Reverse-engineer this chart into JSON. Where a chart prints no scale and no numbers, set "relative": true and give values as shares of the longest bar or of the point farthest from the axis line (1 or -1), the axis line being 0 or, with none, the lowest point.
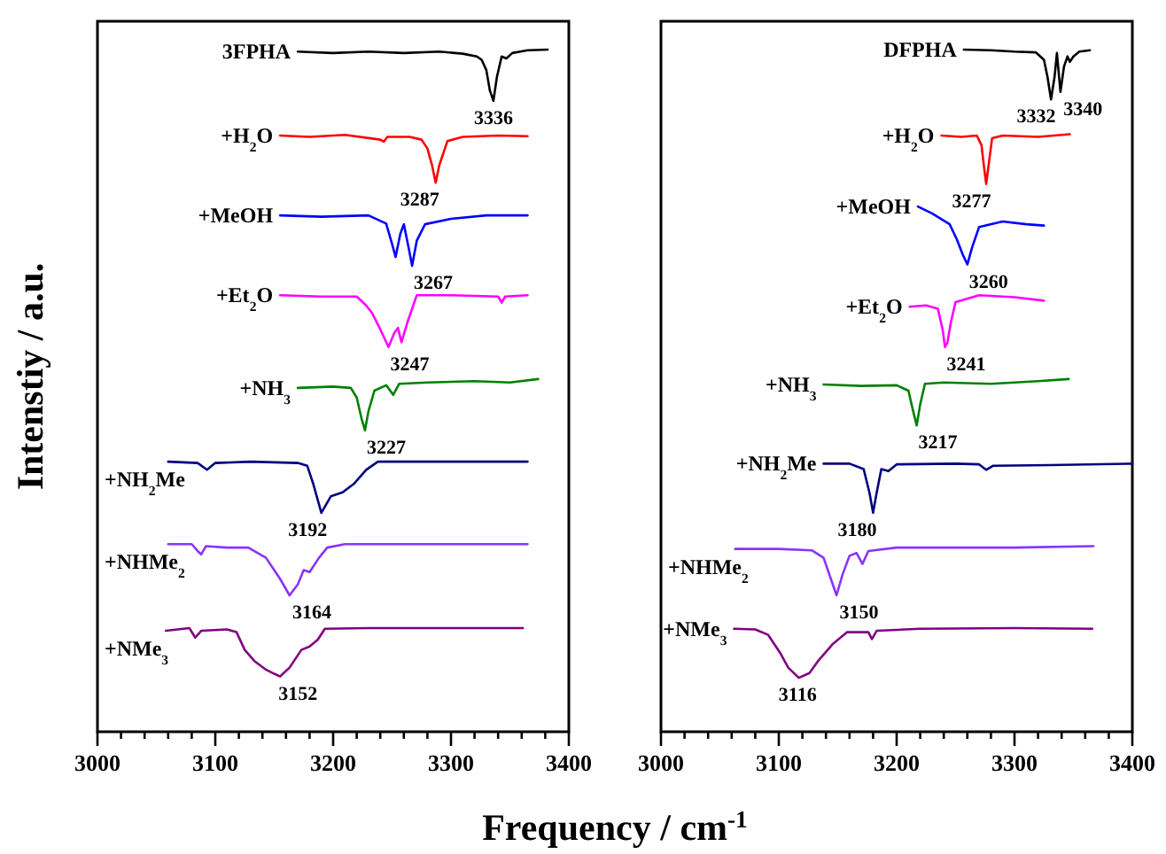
{
  "chart_data": [
    {
      "type": "line",
      "relative": true,
      "ylabel": "Intenstiy / a.u.",
      "xlabel": "Frequency / cm$^{-1}$",
      "xlim": [
        3000,
        3400
      ],
      "xticks": [
        3000,
        {
          "value": 3020,
          "label": null
        },
        {
          "value": 3040,
          "label": null
        },
        {
          "value": 3060,
          "label": null
        },
        {
          "value": 3080,
          "label": null
        },
        3100,
        {
          "value": 3120,
          "label": null
        },
        {
          "value": 3140,
          "label": null
        },
        {
          "value": 3160,
          "label": null
        },
        {
          "value": 3180,
          "label": null
        },
        3200,
        {
          "value": 3220,
          "label": null
        },
        {
          "value": 3240,
          "label": null
        },
        {
          "value": 3260,
          "label": null
        },
        {
          "value": 3280,
          "label": null
        },
        3300,
        {
          "value": 3320,
          "label": null
        },
        {
          "value": 3340,
          "label": null
        },
        {
          "value": 3360,
          "label": null
        },
        {
          "value": 3380,
          "label": null
        },
        3400
      ],
      "series": [
        {
          "name": "3FPHA",
          "color": "#000000",
          "x": [
            3170,
            3200,
            3230,
            3260,
            3290,
            3310,
            3322,
            3326,
            3330,
            3333,
            3336,
            3339,
            3343,
            3347,
            3352,
            3365,
            3382
          ],
          "values": [
            0.997,
            0.995,
            0.997,
            0.995,
            0.997,
            0.994,
            0.99,
            0.985,
            0.97,
            0.94,
            0.925,
            0.96,
            0.99,
            0.987,
            0.995,
            0.999,
            1.0
          ]
        },
        {
          "name": "+H$_{2}$O",
          "color": "#ff0000",
          "x": [
            3155,
            3180,
            3210,
            3240,
            3243,
            3246,
            3265,
            3275,
            3280,
            3284,
            3287,
            3290,
            3297,
            3310,
            3340,
            3365
          ],
          "values": [
            0.874,
            0.872,
            0.875,
            0.868,
            0.865,
            0.872,
            0.872,
            0.868,
            0.855,
            0.83,
            0.805,
            0.83,
            0.866,
            0.872,
            0.874,
            0.873
          ]
        },
        {
          "name": "+MeOH",
          "color": "#0000ff",
          "x": [
            3155,
            3190,
            3230,
            3245,
            3250,
            3253,
            3257,
            3260,
            3264,
            3267,
            3271,
            3278,
            3300,
            3330,
            3365
          ],
          "values": [
            0.757,
            0.755,
            0.757,
            0.745,
            0.715,
            0.696,
            0.73,
            0.744,
            0.71,
            0.683,
            0.72,
            0.744,
            0.752,
            0.757,
            0.757
          ]
        },
        {
          "name": "+Et$_{2}$O",
          "color": "#ff00ff",
          "x": [
            3155,
            3190,
            3220,
            3228,
            3233,
            3240,
            3247,
            3252,
            3255,
            3258,
            3263,
            3271,
            3300,
            3340,
            3343,
            3346,
            3365
          ],
          "values": [
            0.64,
            0.638,
            0.638,
            0.625,
            0.614,
            0.59,
            0.564,
            0.585,
            0.592,
            0.571,
            0.6,
            0.64,
            0.64,
            0.638,
            0.629,
            0.638,
            0.64
          ]
        },
        {
          "name": "+NH$_{3}$",
          "color": "#008000",
          "x": [
            3170,
            3200,
            3215,
            3220,
            3224,
            3227,
            3230,
            3235,
            3245,
            3251,
            3256,
            3280,
            3320,
            3350,
            3374
          ],
          "values": [
            0.504,
            0.506,
            0.504,
            0.49,
            0.46,
            0.442,
            0.47,
            0.5,
            0.508,
            0.494,
            0.51,
            0.512,
            0.514,
            0.512,
            0.517
          ]
        },
        {
          "name": "+NH$_{2}$Me",
          "color": "#000080",
          "x": [
            3060,
            3085,
            3093,
            3100,
            3130,
            3170,
            3178,
            3183,
            3190,
            3198,
            3208,
            3218,
            3228,
            3238,
            3280,
            3330,
            3365
          ],
          "values": [
            0.396,
            0.394,
            0.384,
            0.394,
            0.396,
            0.394,
            0.39,
            0.364,
            0.321,
            0.345,
            0.351,
            0.364,
            0.384,
            0.396,
            0.396,
            0.396,
            0.396
          ]
        },
        {
          "name": "+NHMe$_{2}$",
          "color": "#8833ff",
          "x": [
            3060,
            3080,
            3085,
            3088,
            3092,
            3110,
            3128,
            3143,
            3155,
            3163,
            3170,
            3175,
            3180,
            3188,
            3195,
            3210,
            3260,
            3365
          ],
          "values": [
            0.275,
            0.275,
            0.265,
            0.26,
            0.272,
            0.27,
            0.27,
            0.255,
            0.224,
            0.2,
            0.216,
            0.237,
            0.234,
            0.255,
            0.27,
            0.275,
            0.275,
            0.275
          ]
        },
        {
          "name": "+NMe$_{3}$",
          "color": "#800080",
          "x": [
            3058,
            3078,
            3083,
            3088,
            3110,
            3118,
            3125,
            3133,
            3143,
            3150,
            3155,
            3158,
            3163,
            3173,
            3180,
            3187,
            3193,
            3230,
            3300,
            3361
          ],
          "values": [
            0.148,
            0.152,
            0.138,
            0.148,
            0.15,
            0.146,
            0.12,
            0.104,
            0.091,
            0.085,
            0.081,
            0.086,
            0.094,
            0.12,
            0.125,
            0.135,
            0.151,
            0.152,
            0.152,
            0.152
          ]
        }
      ],
      "annotations": [
        {
          "text": "3336",
          "x": 3336,
          "y": 0.925
        },
        {
          "text": "3287",
          "x": 3287,
          "y": 0.805
        },
        {
          "text": "3267",
          "x": 3267,
          "y": 0.683
        },
        {
          "text": "3247",
          "x": 3247,
          "y": 0.564
        },
        {
          "text": "3227",
          "x": 3227,
          "y": 0.442
        },
        {
          "text": "3192",
          "x": 3192,
          "y": 0.321
        },
        {
          "text": "3164",
          "x": 3164,
          "y": 0.2
        },
        {
          "text": "3152",
          "x": 3152,
          "y": 0.081
        }
      ]
    },
    {
      "type": "line",
      "relative": true,
      "xlim": [
        3000,
        3400
      ],
      "xticks": [
        3000,
        {
          "value": 3020,
          "label": null
        },
        {
          "value": 3040,
          "label": null
        },
        {
          "value": 3060,
          "label": null
        },
        {
          "value": 3080,
          "label": null
        },
        3100,
        {
          "value": 3120,
          "label": null
        },
        {
          "value": 3140,
          "label": null
        },
        {
          "value": 3160,
          "label": null
        },
        {
          "value": 3180,
          "label": null
        },
        3200,
        {
          "value": 3220,
          "label": null
        },
        {
          "value": 3240,
          "label": null
        },
        {
          "value": 3260,
          "label": null
        },
        {
          "value": 3280,
          "label": null
        },
        3300,
        {
          "value": 3320,
          "label": null
        },
        {
          "value": 3340,
          "label": null
        },
        {
          "value": 3360,
          "label": null
        },
        {
          "value": 3380,
          "label": null
        },
        3400
      ],
      "series": [
        {
          "name": "DFPHA",
          "color": "#000000",
          "x": [
            3257,
            3280,
            3300,
            3318,
            3325,
            3328,
            3331,
            3334,
            3336,
            3339,
            3342,
            3345,
            3347,
            3350,
            3355,
            3364
          ],
          "values": [
            1.0,
            0.999,
            0.997,
            0.996,
            0.985,
            0.96,
            0.927,
            0.96,
            0.995,
            0.938,
            0.975,
            0.99,
            0.982,
            0.99,
            0.997,
            0.999
          ]
        },
        {
          "name": "+H$_{2}$O",
          "color": "#ff0000",
          "x": [
            3238,
            3255,
            3268,
            3272,
            3274,
            3276,
            3278,
            3281,
            3290,
            3320,
            3347
          ],
          "values": [
            0.874,
            0.872,
            0.874,
            0.86,
            0.83,
            0.803,
            0.83,
            0.87,
            0.874,
            0.872,
            0.876
          ]
        },
        {
          "name": "+MeOH",
          "color": "#0000ff",
          "x": [
            3218,
            3230,
            3245,
            3251,
            3256,
            3260,
            3264,
            3270,
            3290,
            3310,
            3325
          ],
          "values": [
            0.77,
            0.76,
            0.744,
            0.722,
            0.7,
            0.685,
            0.71,
            0.74,
            0.748,
            0.744,
            0.742
          ]
        },
        {
          "name": "+Et$_{2}$O",
          "color": "#ff00ff",
          "x": [
            3211,
            3225,
            3235,
            3239,
            3241,
            3243,
            3246,
            3250,
            3270,
            3300,
            3325
          ],
          "values": [
            0.623,
            0.625,
            0.62,
            0.59,
            0.564,
            0.57,
            0.6,
            0.63,
            0.64,
            0.637,
            0.632
          ]
        },
        {
          "name": "+NH$_{3}$",
          "color": "#008000",
          "x": [
            3138,
            3170,
            3200,
            3210,
            3214,
            3217,
            3220,
            3224,
            3240,
            3280,
            3320,
            3346
          ],
          "values": [
            0.509,
            0.507,
            0.508,
            0.5,
            0.47,
            0.449,
            0.48,
            0.51,
            0.512,
            0.51,
            0.514,
            0.517
          ]
        },
        {
          "name": "+NH$_{2}$Me",
          "color": "#000080",
          "x": [
            3138,
            3160,
            3172,
            3177,
            3180,
            3183,
            3187,
            3193,
            3200,
            3250,
            3270,
            3276,
            3282,
            3330,
            3400
          ],
          "values": [
            0.393,
            0.393,
            0.385,
            0.35,
            0.321,
            0.35,
            0.385,
            0.382,
            0.392,
            0.393,
            0.392,
            0.384,
            0.39,
            0.391,
            0.393
          ]
        },
        {
          "name": "+NHMe$_{2}$",
          "color": "#8833ff",
          "x": [
            3063,
            3100,
            3128,
            3138,
            3144,
            3149,
            3154,
            3160,
            3166,
            3171,
            3176,
            3200,
            3300,
            3367
          ],
          "values": [
            0.268,
            0.268,
            0.266,
            0.255,
            0.225,
            0.2,
            0.23,
            0.258,
            0.262,
            0.246,
            0.265,
            0.27,
            0.27,
            0.272
          ]
        },
        {
          "name": "+NMe$_{3}$",
          "color": "#800080",
          "x": [
            3062,
            3080,
            3091,
            3101,
            3108,
            3117,
            3126,
            3133,
            3146,
            3158,
            3176,
            3179,
            3183,
            3220,
            3300,
            3366
          ],
          "values": [
            0.151,
            0.15,
            0.142,
            0.116,
            0.094,
            0.079,
            0.086,
            0.103,
            0.129,
            0.146,
            0.146,
            0.136,
            0.148,
            0.151,
            0.152,
            0.151
          ]
        }
      ],
      "annotations": [
        {
          "text": "3332",
          "x": 3332,
          "y": 0.927
        },
        {
          "text": "3340",
          "x": 3340,
          "y": 0.938
        },
        {
          "text": "3277",
          "x": 3277,
          "y": 0.803
        },
        {
          "text": "3260",
          "x": 3260,
          "y": 0.685
        },
        {
          "text": "3241",
          "x": 3241,
          "y": 0.564
        },
        {
          "text": "3217",
          "x": 3217,
          "y": 0.449
        },
        {
          "text": "3180",
          "x": 3180,
          "y": 0.321
        },
        {
          "text": "3150",
          "x": 3150,
          "y": 0.2
        },
        {
          "text": "3116",
          "x": 3116,
          "y": 0.079
        }
      ]
    }
  ]
}
